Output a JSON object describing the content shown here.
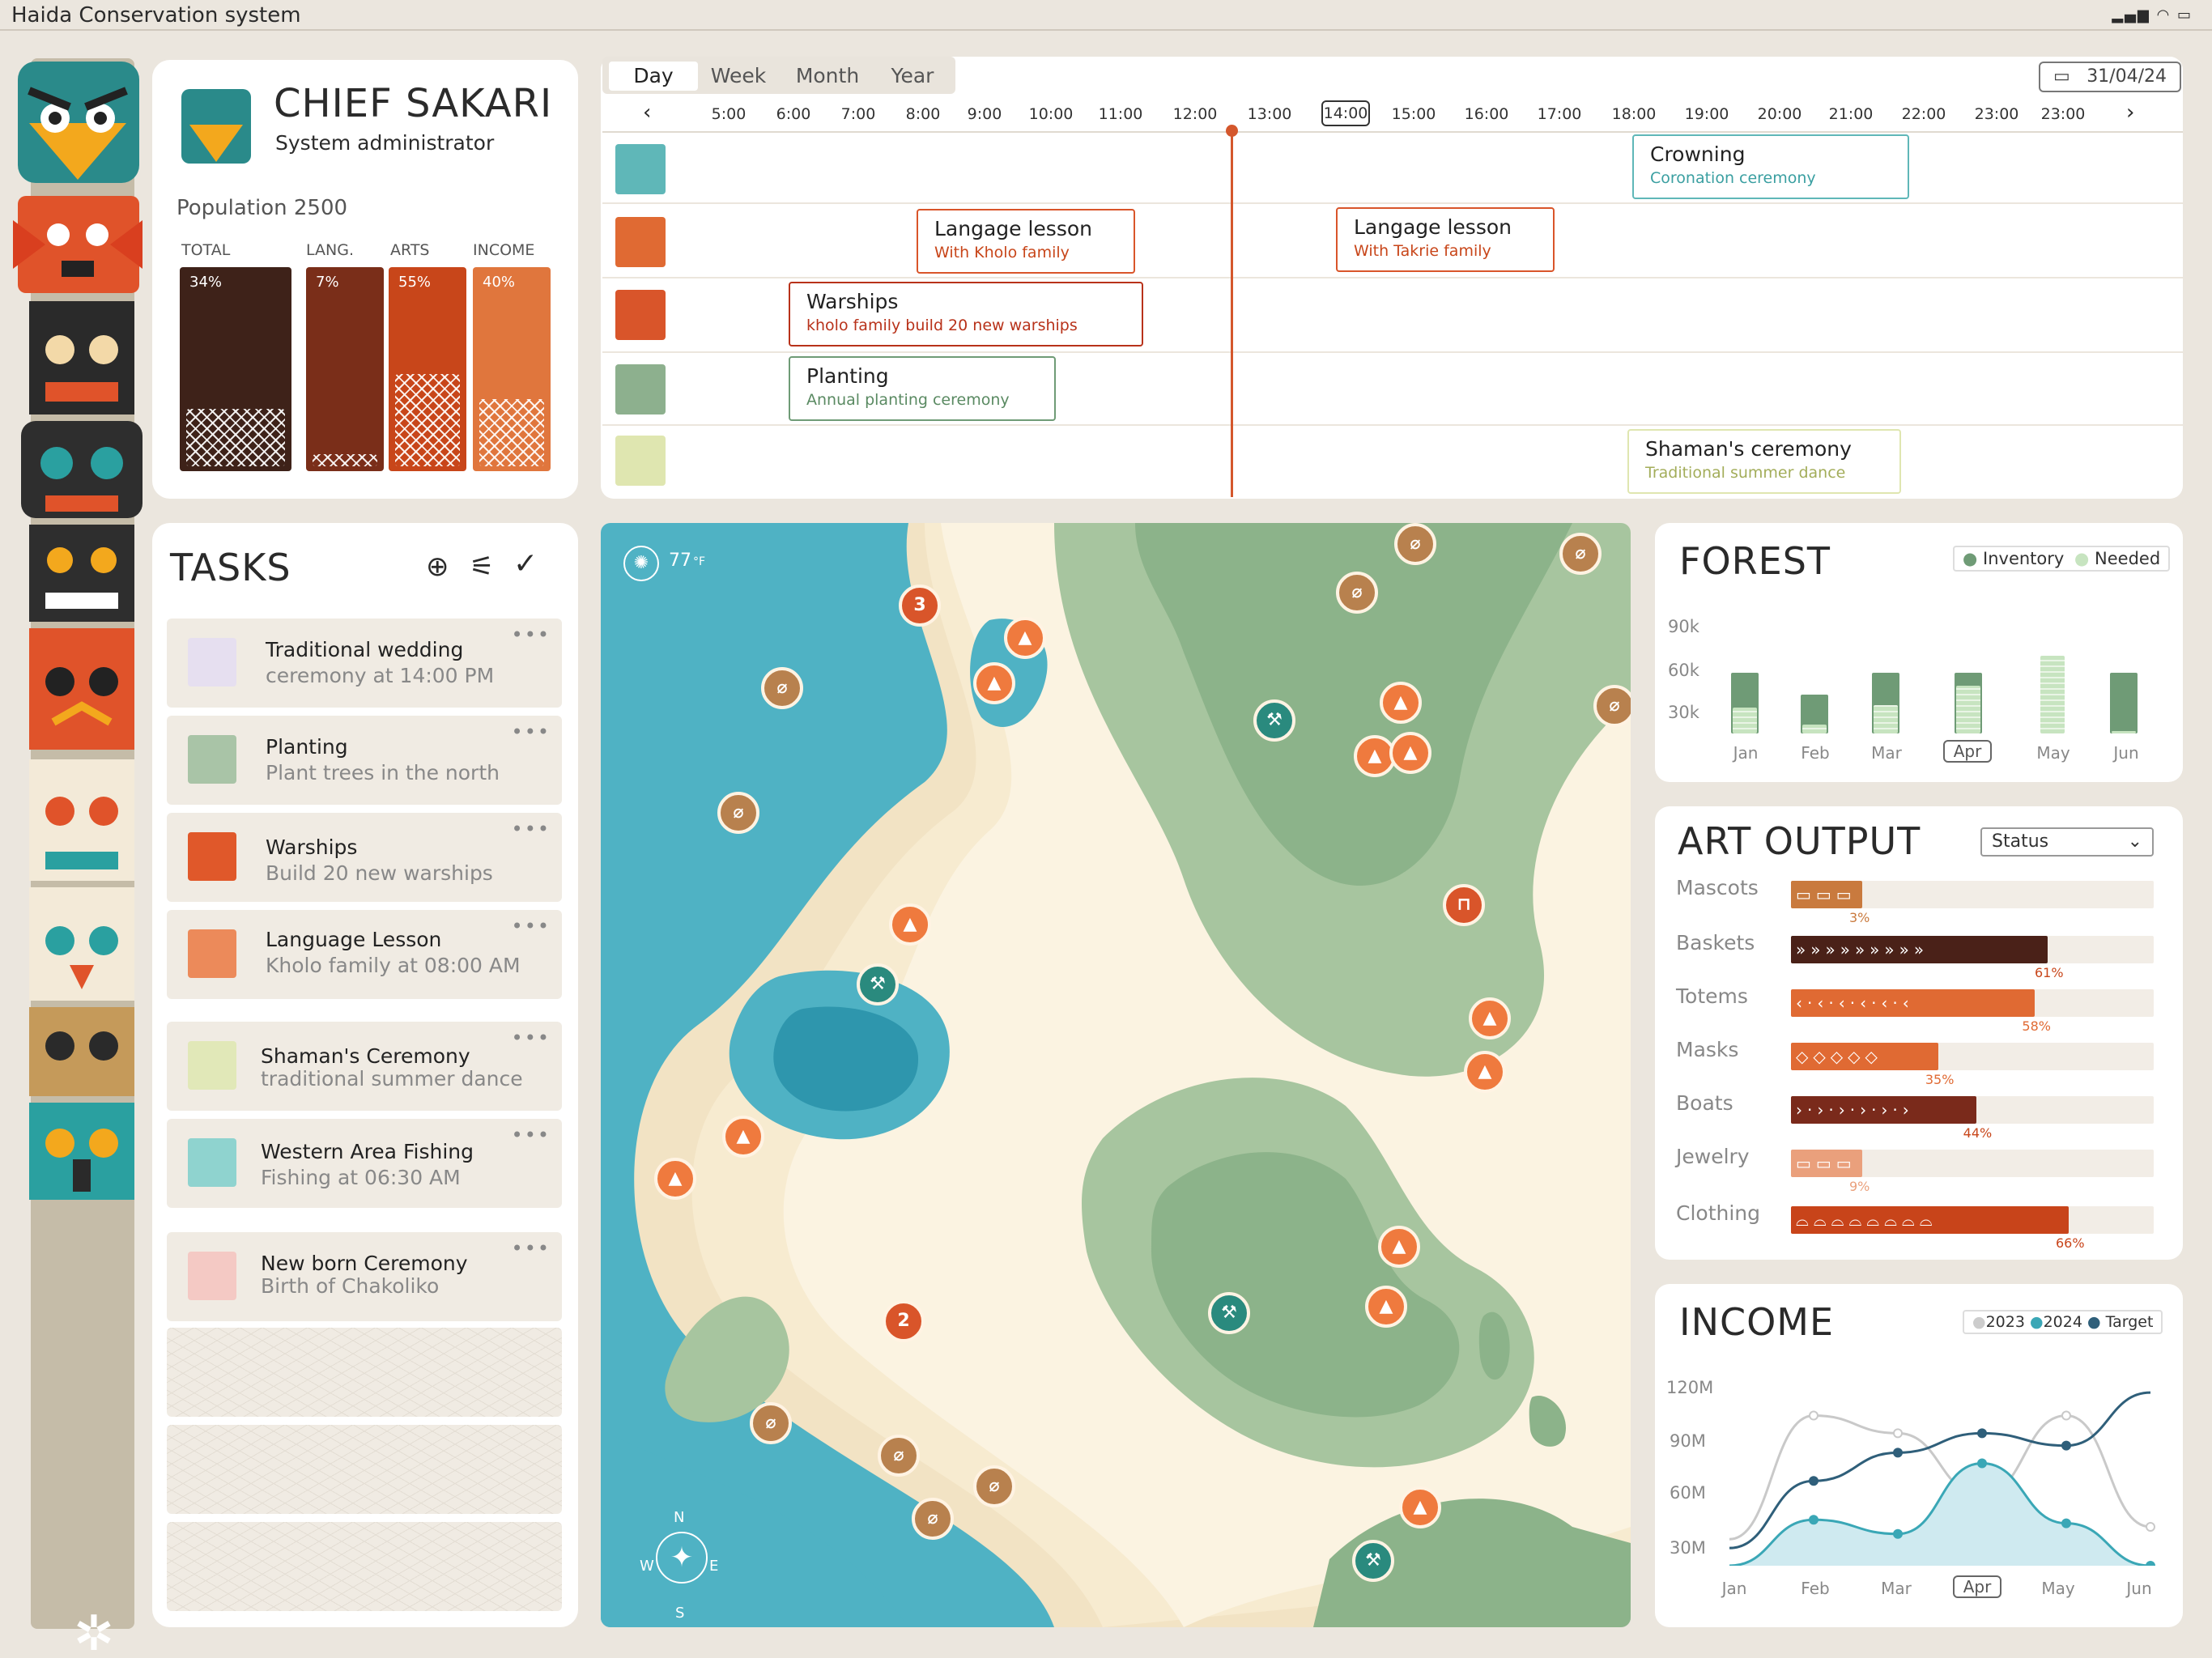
{
  "app": {
    "title": "Haida Conservation system"
  },
  "profile": {
    "name": "CHIEF SAKARI",
    "role": "System administrator",
    "population": "Population 2500",
    "bars": [
      {
        "label": "TOTAL",
        "pct_label": "34%",
        "value": 34,
        "color": "#3e2219"
      },
      {
        "label": "LANG.",
        "pct_label": "7%",
        "value": 7,
        "color": "#7a2e19"
      },
      {
        "label": "ARTS",
        "pct_label": "55%",
        "value": 55,
        "color": "#c8461a"
      },
      {
        "label": "INCOME",
        "pct_label": "40%",
        "value": 40,
        "color": "#e0763d"
      }
    ]
  },
  "schedule": {
    "tabs": [
      "Day",
      "Week",
      "Month",
      "Year"
    ],
    "active_tab": "Day",
    "date": "31/04/24",
    "hours": [
      "5:00",
      "6:00",
      "7:00",
      "8:00",
      "9:00",
      "10:00",
      "11:00",
      "12:00",
      "13:00",
      "14:00",
      "15:00",
      "16:00",
      "17:00",
      "18:00",
      "19:00",
      "20:00",
      "21:00",
      "22:00",
      "23:00",
      "23:00"
    ],
    "current_hour": "14:00",
    "events": [
      {
        "title": "Crowning",
        "subtitle": "Coronation ceremony"
      },
      {
        "title": "Langage lesson",
        "subtitle": "With Kholo family"
      },
      {
        "title": "Langage lesson",
        "subtitle": "With Takrie family"
      },
      {
        "title": "Warships",
        "subtitle": "kholo family build 20 new warships"
      },
      {
        "title": "Planting",
        "subtitle": "Annual planting ceremony"
      },
      {
        "title": "Shaman's ceremony",
        "subtitle": "Traditional summer dance"
      }
    ]
  },
  "tasks": {
    "title": "TASKS",
    "items": [
      {
        "title": "Traditional wedding",
        "subtitle": "ceremony at 14:00 PM",
        "icon": "wedding-icon"
      },
      {
        "title": "Planting",
        "subtitle": "Plant trees in the north",
        "icon": "tree-icon"
      },
      {
        "title": "Warships",
        "subtitle": "Build 20 new warships",
        "icon": "warship-icon"
      },
      {
        "title": "Language Lesson",
        "subtitle": "Kholo family at 08:00 AM",
        "icon": "lesson-icon"
      },
      {
        "title": "Shaman's Ceremony",
        "subtitle": "traditional summer dance",
        "icon": "shaman-icon"
      },
      {
        "title": "Western Area Fishing",
        "subtitle": "Fishing at 06:30 AM",
        "icon": "fishing-spear-icon"
      },
      {
        "title": "New born Ceremony",
        "subtitle": "Birth of Chakoliko",
        "icon": "newborn-icon"
      }
    ]
  },
  "map": {
    "temperature": "77",
    "temp_unit": "°F",
    "compass": {
      "n": "N",
      "s": "S",
      "e": "E",
      "w": "W"
    },
    "pin_labels": {
      "warship_3": "3",
      "warship_2": "2"
    }
  },
  "forest": {
    "title": "FOREST",
    "legend": [
      "Inventory",
      "Needed"
    ],
    "yticks": [
      "90k",
      "60k",
      "30k"
    ],
    "months": [
      "Jan",
      "Feb",
      "Mar",
      "Apr",
      "May",
      "Jun"
    ],
    "selected": "Apr",
    "chart_data": {
      "type": "bar",
      "categories": [
        "Jan",
        "Feb",
        "Mar",
        "Apr",
        "May",
        "Jun"
      ],
      "series": [
        {
          "name": "Inventory",
          "values": [
            56,
            36,
            56,
            56,
            0,
            56
          ]
        },
        {
          "name": "Needed",
          "values": [
            24,
            8,
            26,
            44,
            72,
            2
          ]
        }
      ],
      "ylim": [
        0,
        90
      ]
    }
  },
  "art": {
    "title": "ART OUTPUT",
    "dropdown": "Status",
    "items": [
      {
        "label": "Mascots",
        "pct": "3%",
        "value": 3,
        "color": "#c97a3e",
        "pattern": "▭▭▭"
      },
      {
        "label": "Baskets",
        "pct": "61%",
        "value": 61,
        "color": "#4a2118",
        "pattern": "»»»»»»»»»"
      },
      {
        "label": "Totems",
        "pct": "58%",
        "value": 58,
        "color": "#e06a33",
        "pattern": "‹·‹·‹·‹·‹·‹"
      },
      {
        "label": "Masks",
        "pct": "35%",
        "value": 35,
        "color": "#e06a33",
        "pattern": "◇◇◇◇◇"
      },
      {
        "label": "Boats",
        "pct": "44%",
        "value": 44,
        "color": "#7a2a1b",
        "pattern": "›·›·›·›·›·›"
      },
      {
        "label": "Jewelry",
        "pct": "9%",
        "value": 9,
        "color": "#eaa07c",
        "pattern": "▭▭▭"
      },
      {
        "label": "Clothing",
        "pct": "66%",
        "value": 66,
        "color": "#c8441a",
        "pattern": "⌓⌓⌓⌓⌓⌓⌓⌓"
      }
    ]
  },
  "income": {
    "title": "INCOME",
    "legend": [
      "2023",
      "2024",
      "Target"
    ],
    "yticks": [
      "120M",
      "90M",
      "60M",
      "30M"
    ],
    "months": [
      "Jan",
      "Feb",
      "Mar",
      "Apr",
      "May",
      "Jun"
    ],
    "selected": "Apr",
    "chart_data": {
      "type": "line",
      "x": [
        "Jan",
        "Feb",
        "Mar",
        "Apr",
        "May",
        "Jun"
      ],
      "series": [
        {
          "name": "2023",
          "values": [
            35,
            105,
            95,
            60,
            105,
            42
          ]
        },
        {
          "name": "2024",
          "values": [
            20,
            46,
            38,
            78,
            44,
            20
          ]
        },
        {
          "name": "Target",
          "values": [
            30,
            68,
            84,
            95,
            88,
            118
          ]
        }
      ],
      "ylim": [
        20,
        130
      ]
    }
  }
}
